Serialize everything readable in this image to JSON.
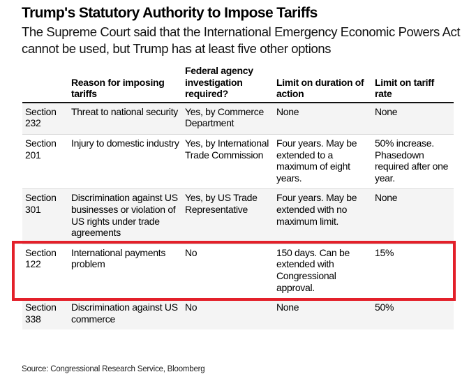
{
  "title": "Trump's Statutory Authority to Impose Tariffs",
  "subtitle": "The Supreme Court said that the International Emergency Economic Powers Act cannot be used, but Trump has at least five other options",
  "table": {
    "headers": [
      "",
      "Reason for imposing tariffs",
      "Federal agency investigation required?",
      "Limit on duration of action",
      "Limit on tariff rate"
    ],
    "rows": [
      {
        "section": "Section 232",
        "reason": "Threat to national security",
        "investigation": "Yes, by Commerce Department",
        "duration": "None",
        "rate": "None"
      },
      {
        "section": "Section 201",
        "reason": "Injury to domestic industry",
        "investigation": "Yes, by International Trade Commission",
        "duration": "Four years. May be extended to a maximum of eight years.",
        "rate": "50% increase. Phasedown required after one year."
      },
      {
        "section": "Section 301",
        "reason": "Discrimination against US businesses or violation of US rights under trade agreements",
        "investigation": "Yes, by US Trade Representative",
        "duration": "Four years. May be extended with no maximum limit.",
        "rate": "None"
      },
      {
        "section": "Section 122",
        "reason": "International payments problem",
        "investigation": "No",
        "duration": "150 days. Can be extended with Congressional approval.",
        "rate": "15%"
      },
      {
        "section": "Section 338",
        "reason": "Discrimination against US commerce",
        "investigation": "No",
        "duration": "None",
        "rate": "50%"
      }
    ]
  },
  "highlight": {
    "row": "Section 122",
    "color": "#e3202a"
  },
  "source": "Source: Congressional Research Service, Bloomberg"
}
